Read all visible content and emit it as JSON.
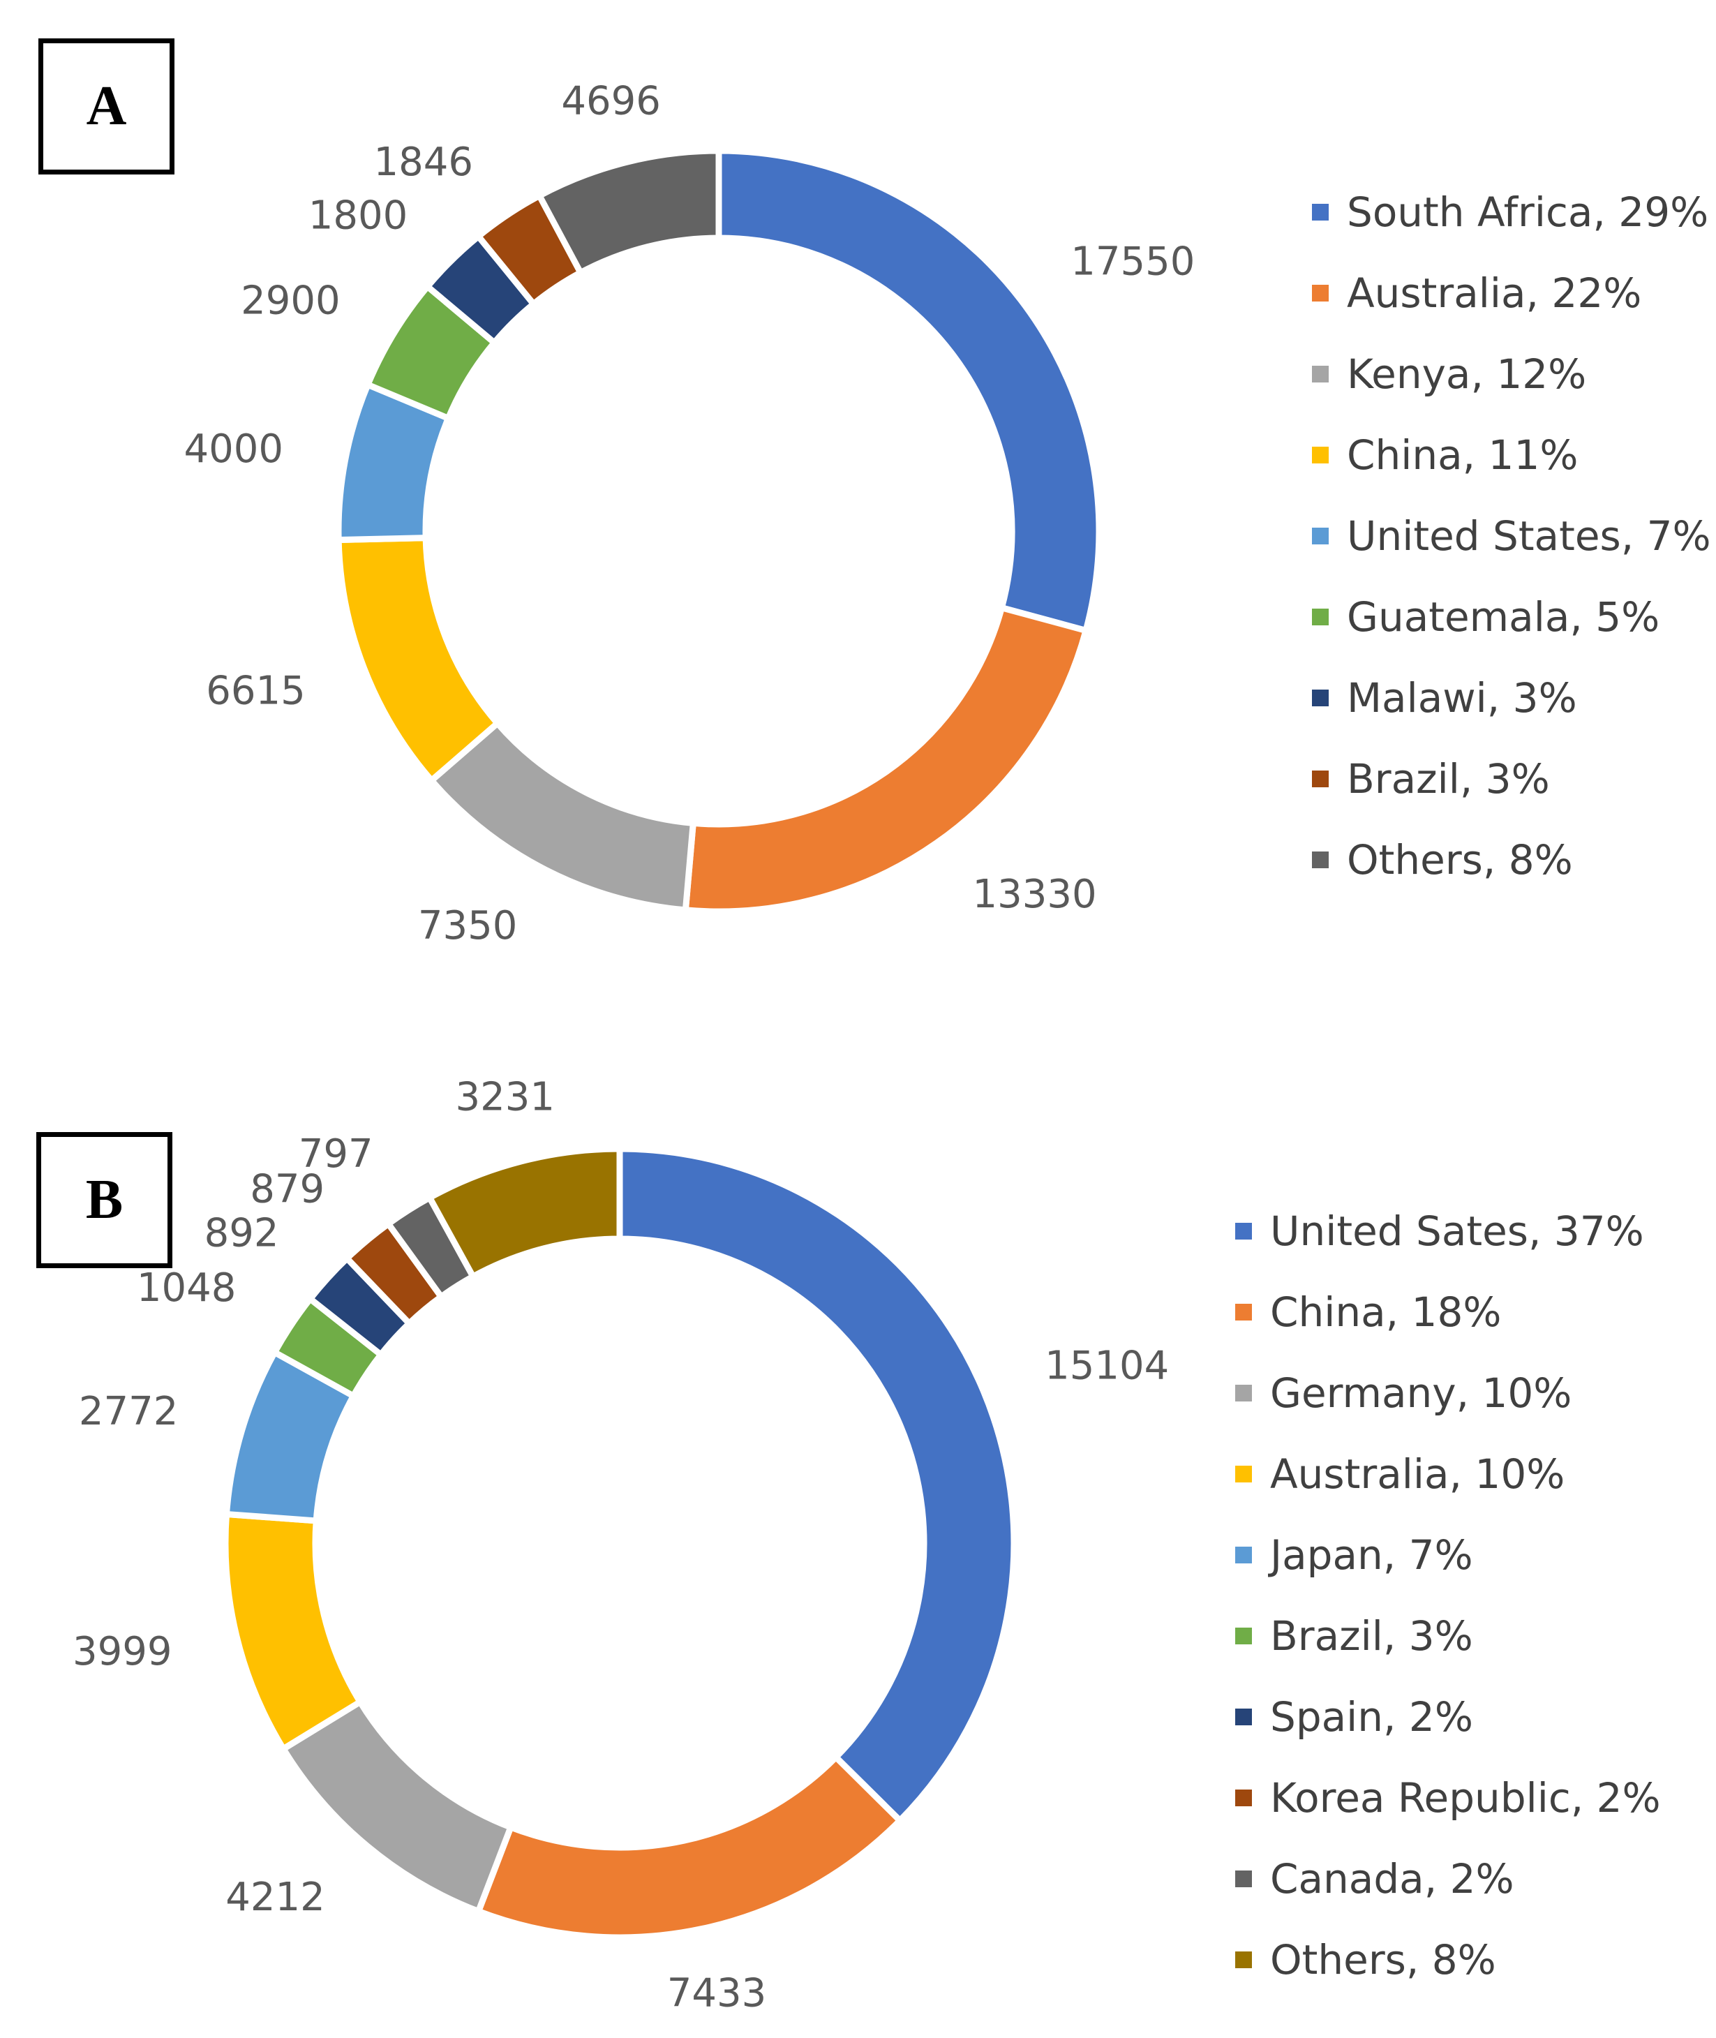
{
  "chart_data": [
    {
      "type": "pie",
      "variant": "donut",
      "panel_label": "A",
      "labels": [
        "South Africa",
        "Australia",
        "Kenya",
        "China",
        "United States",
        "Guatemala",
        "Malawi",
        "Brazil",
        "Others"
      ],
      "values": [
        17550,
        13330,
        7350,
        6615,
        4000,
        2900,
        1800,
        1846,
        4696
      ],
      "value_labels": [
        "17550",
        "13330",
        "7350",
        "6615",
        "4000",
        "2900",
        "1800",
        "1846",
        "4696"
      ],
      "legend_entries": [
        "South Africa, 29%",
        "Australia, 22%",
        "Kenya, 12%",
        "China, 11%",
        "United States, 7%",
        "Guatemala, 5%",
        "Malawi, 3%",
        "Brazil, 3%",
        "Others, 8%"
      ],
      "colors": [
        "#4472C4",
        "#ED7D31",
        "#A5A5A5",
        "#FFC000",
        "#5B9BD5",
        "#70AD47",
        "#264478",
        "#9E480E",
        "#636363"
      ],
      "legend_position": "right",
      "title": ""
    },
    {
      "type": "pie",
      "variant": "donut",
      "panel_label": "B",
      "labels": [
        "United Sates",
        "China",
        "Germany",
        "Australia",
        "Japan",
        "Brazil",
        "Spain",
        "Korea Republic",
        "Canada",
        "Others"
      ],
      "values": [
        15104,
        7433,
        4212,
        3999,
        2772,
        1048,
        892,
        879,
        797,
        3231
      ],
      "value_labels": [
        "15104",
        "7433",
        "4212",
        "3999",
        "2772",
        "1048",
        "892",
        "879",
        "797",
        "3231"
      ],
      "legend_entries": [
        "United Sates, 37%",
        "China, 18%",
        "Germany, 10%",
        "Australia, 10%",
        "Japan, 7%",
        "Brazil, 3%",
        "Spain, 2%",
        "Korea Republic, 2%",
        "Canada, 2%",
        "Others, 8%"
      ],
      "colors": [
        "#4472C4",
        "#ED7D31",
        "#A5A5A5",
        "#FFC000",
        "#5B9BD5",
        "#70AD47",
        "#264478",
        "#9E480E",
        "#636363",
        "#997300"
      ],
      "legend_position": "right",
      "title": ""
    }
  ]
}
